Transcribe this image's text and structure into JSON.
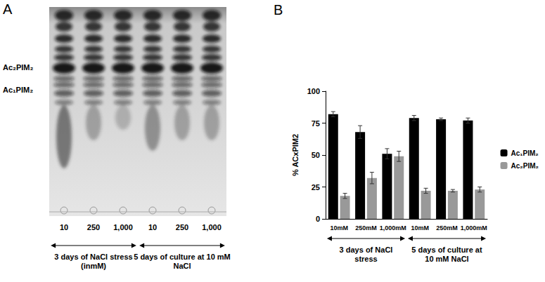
{
  "panel_a": {
    "label": "A",
    "band_labels": [
      "Ac₂PIM₂",
      "Ac₁PIM₂"
    ],
    "lane_labels": [
      "10",
      "250",
      "1,000",
      "10",
      "250",
      "1,000"
    ],
    "group_labels": [
      "3 days of NaCl stress (inmM)",
      "5 days of culture at 10 mM NaCl"
    ]
  },
  "chart_data": {
    "type": "bar",
    "panel_label": "B",
    "ylabel": "% ACxPIM2",
    "categories": [
      "10mM",
      "250mM",
      "1,000mM",
      "10mM",
      "250mM",
      "1,000mM"
    ],
    "series": [
      {
        "name": "Ac₁PIM₂",
        "color": "#000000",
        "values": [
          82,
          68,
          51,
          79,
          78,
          77
        ],
        "errors": [
          2,
          5,
          4,
          2,
          1,
          2
        ]
      },
      {
        "name": "Ac₂PIM₂",
        "color": "#999999",
        "values": [
          18,
          32,
          49,
          22,
          22,
          23
        ],
        "errors": [
          2,
          4.5,
          4,
          2,
          1,
          2
        ]
      }
    ],
    "ylim": [
      0,
      100
    ],
    "yticks": [
      0,
      25,
      50,
      75,
      100
    ],
    "grid": false,
    "legend": "right",
    "group_labels": [
      "3 days of NaCl stress",
      "5 days of culture at 10 mM NaCl"
    ]
  }
}
